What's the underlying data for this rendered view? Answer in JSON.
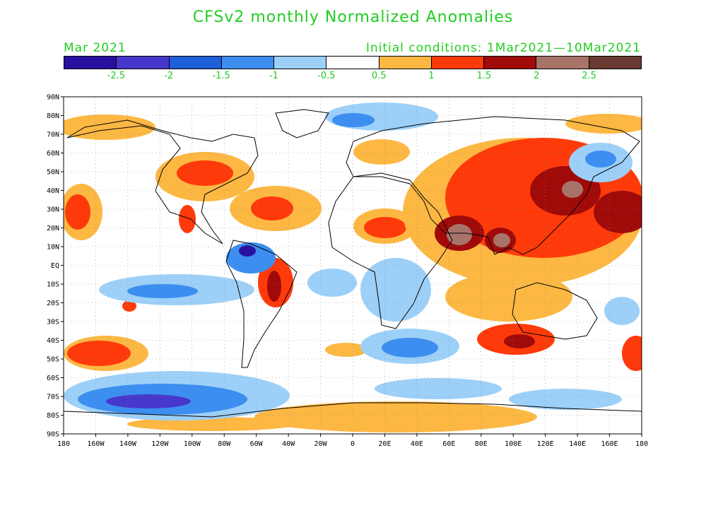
{
  "title": "CFSv2 monthly Normalized Anomalies",
  "month_label": "Mar 2021",
  "initial_conditions": "Initial conditions: 1Mar2021—10Mar2021",
  "colorbar": {
    "colors": [
      "#2a10a0",
      "#4638cc",
      "#1d5fd6",
      "#3c8ef0",
      "#9dd0f8",
      "#ffffff",
      "#fcb843",
      "#ff3a0a",
      "#a00a08",
      "#a8746a",
      "#6a3a30"
    ],
    "labels": [
      "-2.5",
      "-2",
      "-1.5",
      "-1",
      "-0.5",
      "0.5",
      "1",
      "1.5",
      "2",
      "2.5"
    ]
  },
  "map": {
    "lat_labels": [
      "90N",
      "80N",
      "70N",
      "60N",
      "50N",
      "40N",
      "30N",
      "20N",
      "10N",
      "EQ",
      "10S",
      "20S",
      "30S",
      "40S",
      "50S",
      "60S",
      "70S",
      "80S",
      "90S"
    ],
    "lon_labels": [
      "180",
      "160W",
      "140W",
      "120W",
      "100W",
      "80W",
      "60W",
      "40W",
      "20W",
      "0",
      "20E",
      "40E",
      "60E",
      "80E",
      "100E",
      "120E",
      "140E",
      "160E",
      "180"
    ]
  }
}
